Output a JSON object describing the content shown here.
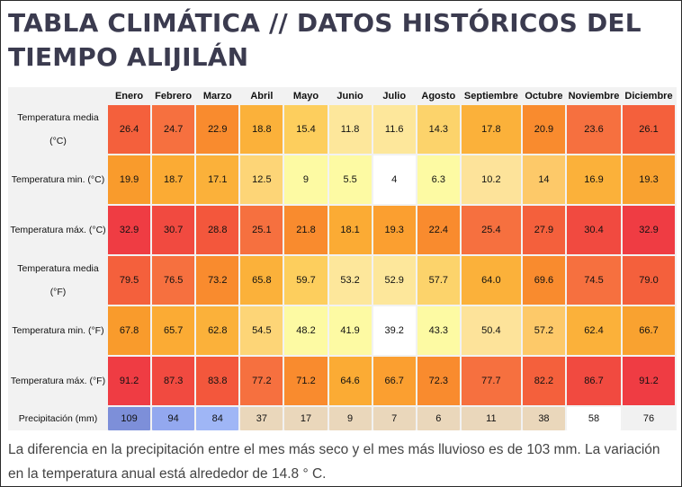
{
  "title": "TABLA CLIMÁTICA // DATOS HISTÓRICOS DEL TIEMPO ALIJILÁN",
  "months": [
    "Enero",
    "Febrero",
    "Marzo",
    "Abril",
    "Mayo",
    "Junio",
    "Julio",
    "Agosto",
    "Septiembre",
    "Octubre",
    "Noviembre",
    "Diciembre"
  ],
  "rows": [
    {
      "label": "Temperatura media (°C)",
      "values": [
        "26.4",
        "24.7",
        "22.9",
        "18.8",
        "15.4",
        "11.8",
        "11.6",
        "14.3",
        "17.8",
        "20.9",
        "23.6",
        "26.1"
      ],
      "colors": [
        "#f4603c",
        "#f6703f",
        "#f98b2e",
        "#fbb13a",
        "#fdce5d",
        "#fde79b",
        "#fde79b",
        "#fcd36b",
        "#fbb13a",
        "#f98b2e",
        "#f6703f",
        "#f4603c"
      ]
    },
    {
      "label": "Temperatura min. (°C)",
      "values": [
        "19.9",
        "18.7",
        "17.1",
        "12.5",
        "9",
        "5.5",
        "4",
        "6.3",
        "10.2",
        "14",
        "16.9",
        "19.3"
      ],
      "colors": [
        "#f99b2c",
        "#fbab34",
        "#fbb13a",
        "#fdd577",
        "#fdfaa3",
        "#fdfaa3",
        "#ffffff",
        "#fdfaa3",
        "#fde39a",
        "#fdc969",
        "#fbb13a",
        "#f9a230"
      ]
    },
    {
      "label": "Temperatura máx. (°C)",
      "values": [
        "32.9",
        "30.7",
        "28.8",
        "25.1",
        "21.8",
        "18.1",
        "19.3",
        "22.4",
        "25.4",
        "27.9",
        "30.4",
        "32.9"
      ],
      "colors": [
        "#ef3c43",
        "#f14a40",
        "#f3573c",
        "#f6703f",
        "#f98b2e",
        "#fbab34",
        "#fb9f30",
        "#f98b2e",
        "#f6703f",
        "#f4603c",
        "#f14a40",
        "#ef3c43"
      ]
    },
    {
      "label": "Temperatura media (°F)",
      "values": [
        "79.5",
        "76.5",
        "73.2",
        "65.8",
        "59.7",
        "53.2",
        "52.9",
        "57.7",
        "64.0",
        "69.6",
        "74.5",
        "79.0"
      ],
      "colors": [
        "#f4603c",
        "#f6703f",
        "#f98b2e",
        "#fbb13a",
        "#fdce5d",
        "#fde79b",
        "#fde79b",
        "#fcd36b",
        "#fbb13a",
        "#f98b2e",
        "#f6703f",
        "#f4603c"
      ]
    },
    {
      "label": "Temperatura min. (°F)",
      "values": [
        "67.8",
        "65.7",
        "62.8",
        "54.5",
        "48.2",
        "41.9",
        "39.2",
        "43.3",
        "50.4",
        "57.2",
        "62.4",
        "66.7"
      ],
      "colors": [
        "#f99b2c",
        "#fbab34",
        "#fbb13a",
        "#fdd577",
        "#fdfaa3",
        "#fdfaa3",
        "#ffffff",
        "#fdfaa3",
        "#fde39a",
        "#fdc969",
        "#fbb13a",
        "#f9a230"
      ]
    },
    {
      "label": "Temperatura máx. (°F)",
      "values": [
        "91.2",
        "87.3",
        "83.8",
        "77.2",
        "71.2",
        "64.6",
        "66.7",
        "72.3",
        "77.7",
        "82.2",
        "86.7",
        "91.2"
      ],
      "colors": [
        "#ef3c43",
        "#f14a40",
        "#f3573c",
        "#f6703f",
        "#f98b2e",
        "#fbab34",
        "#fb9f30",
        "#f98b2e",
        "#f6703f",
        "#f4603c",
        "#f14a40",
        "#ef3c43"
      ]
    },
    {
      "label": "Precipitación (mm)",
      "values": [
        "109",
        "94",
        "84",
        "37",
        "17",
        "9",
        "7",
        "6",
        "11",
        "38",
        "58",
        "76"
      ],
      "colors": [
        "#7d8fd9",
        "#93a8ef",
        "#9fb6f6",
        "#ead7bb",
        "#ead7bb",
        "#ead7bb",
        "#ead7bb",
        "#ead7bb",
        "#ead7bb",
        "#ead7bb",
        "#ffffff",
        "#f1f1f1"
      ]
    }
  ],
  "description": "La diferencia en la precipitación entre el mes más seco y el mes más lluvioso es de 103 mm. La variación en la temperatura anual está alrededor de 14.8 ° C."
}
